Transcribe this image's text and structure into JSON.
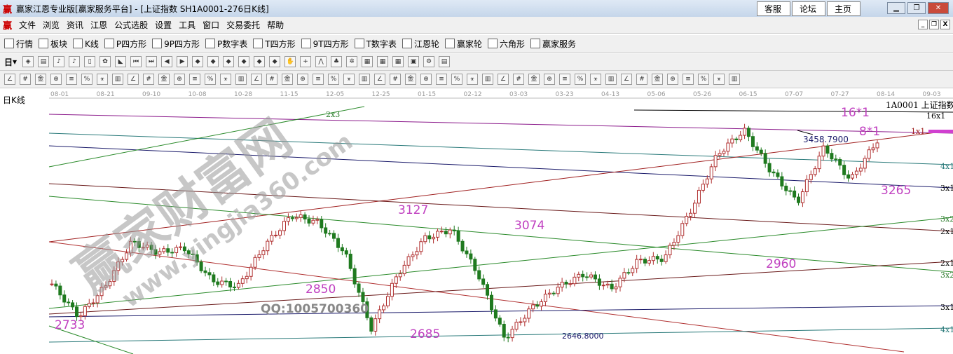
{
  "window": {
    "logo": "赢",
    "title": "赢家江恩专业版[赢家服务平台] - [上证指数  SH1A0001-276日K线]",
    "top_buttons": [
      "客服",
      "论坛",
      "主页"
    ]
  },
  "menu": [
    "文件",
    "浏览",
    "资讯",
    "江恩",
    "公式选股",
    "设置",
    "工具",
    "窗口",
    "交易委托",
    "帮助"
  ],
  "toolbar1": [
    {
      "icon": "table-icon",
      "label": "行情"
    },
    {
      "icon": "blocks-icon",
      "label": "板块"
    },
    {
      "icon": "kline-icon",
      "label": "K线"
    },
    {
      "icon": "ps-icon",
      "label": "P四方形"
    },
    {
      "icon": "p9-icon",
      "label": "9P四方形"
    },
    {
      "icon": "pn-icon",
      "label": "P数字表"
    },
    {
      "icon": "ts-icon",
      "label": "T四方形"
    },
    {
      "icon": "t9-icon",
      "label": "9T四方形"
    },
    {
      "icon": "tn-icon",
      "label": "T数字表"
    },
    {
      "icon": "gann-wheel-icon",
      "label": "江恩轮"
    },
    {
      "icon": "winner-wheel-icon",
      "label": "赢家轮"
    },
    {
      "icon": "hexagon-icon",
      "label": "六角形"
    },
    {
      "icon": "dollar-icon",
      "label": "赢家服务"
    }
  ],
  "toolbar2_period": "日",
  "chart": {
    "period_label": "日K线",
    "stock_label": "1A0001  上证指数",
    "dates": [
      "08-01",
      "08-21",
      "09-10",
      "10-08",
      "10-28",
      "11-15",
      "12-05",
      "12-25",
      "01-15",
      "02-12",
      "03-03",
      "03-23",
      "04-13",
      "05-06",
      "05-26",
      "06-15",
      "07-07",
      "07-27",
      "08-14",
      "09-03"
    ],
    "annotations": [
      "2733",
      "3127",
      "2850",
      "3074",
      "2685",
      "2960",
      "3265",
      "16*1",
      "8*1"
    ],
    "price_labels": [
      "3458.7900",
      "2646.8000"
    ],
    "gann_labels": [
      "16x1",
      "1x1",
      "4x1",
      "3x1",
      "3x2",
      "2x1",
      "2x1",
      "3x2",
      "3x1",
      "4x1",
      "2x3"
    ],
    "watermark": [
      "赢家财富网",
      "www.yingjia360.com",
      "QQ:1005700360"
    ],
    "up_color": "#b03030",
    "down_color": "#1f7a1f"
  },
  "chart_data": {
    "type": "candlestick",
    "keypoints": [
      2860,
      2733,
      2850,
      3024,
      2983,
      3000,
      2874,
      2850,
      3010,
      3127,
      3100,
      2983,
      2685,
      2900,
      3038,
      3074,
      2900,
      2647,
      2765,
      2847,
      2900,
      2840,
      2950,
      2960,
      3148,
      3366,
      3458.79,
      3300,
      3180,
      3393,
      3265,
      3420
    ]
  }
}
